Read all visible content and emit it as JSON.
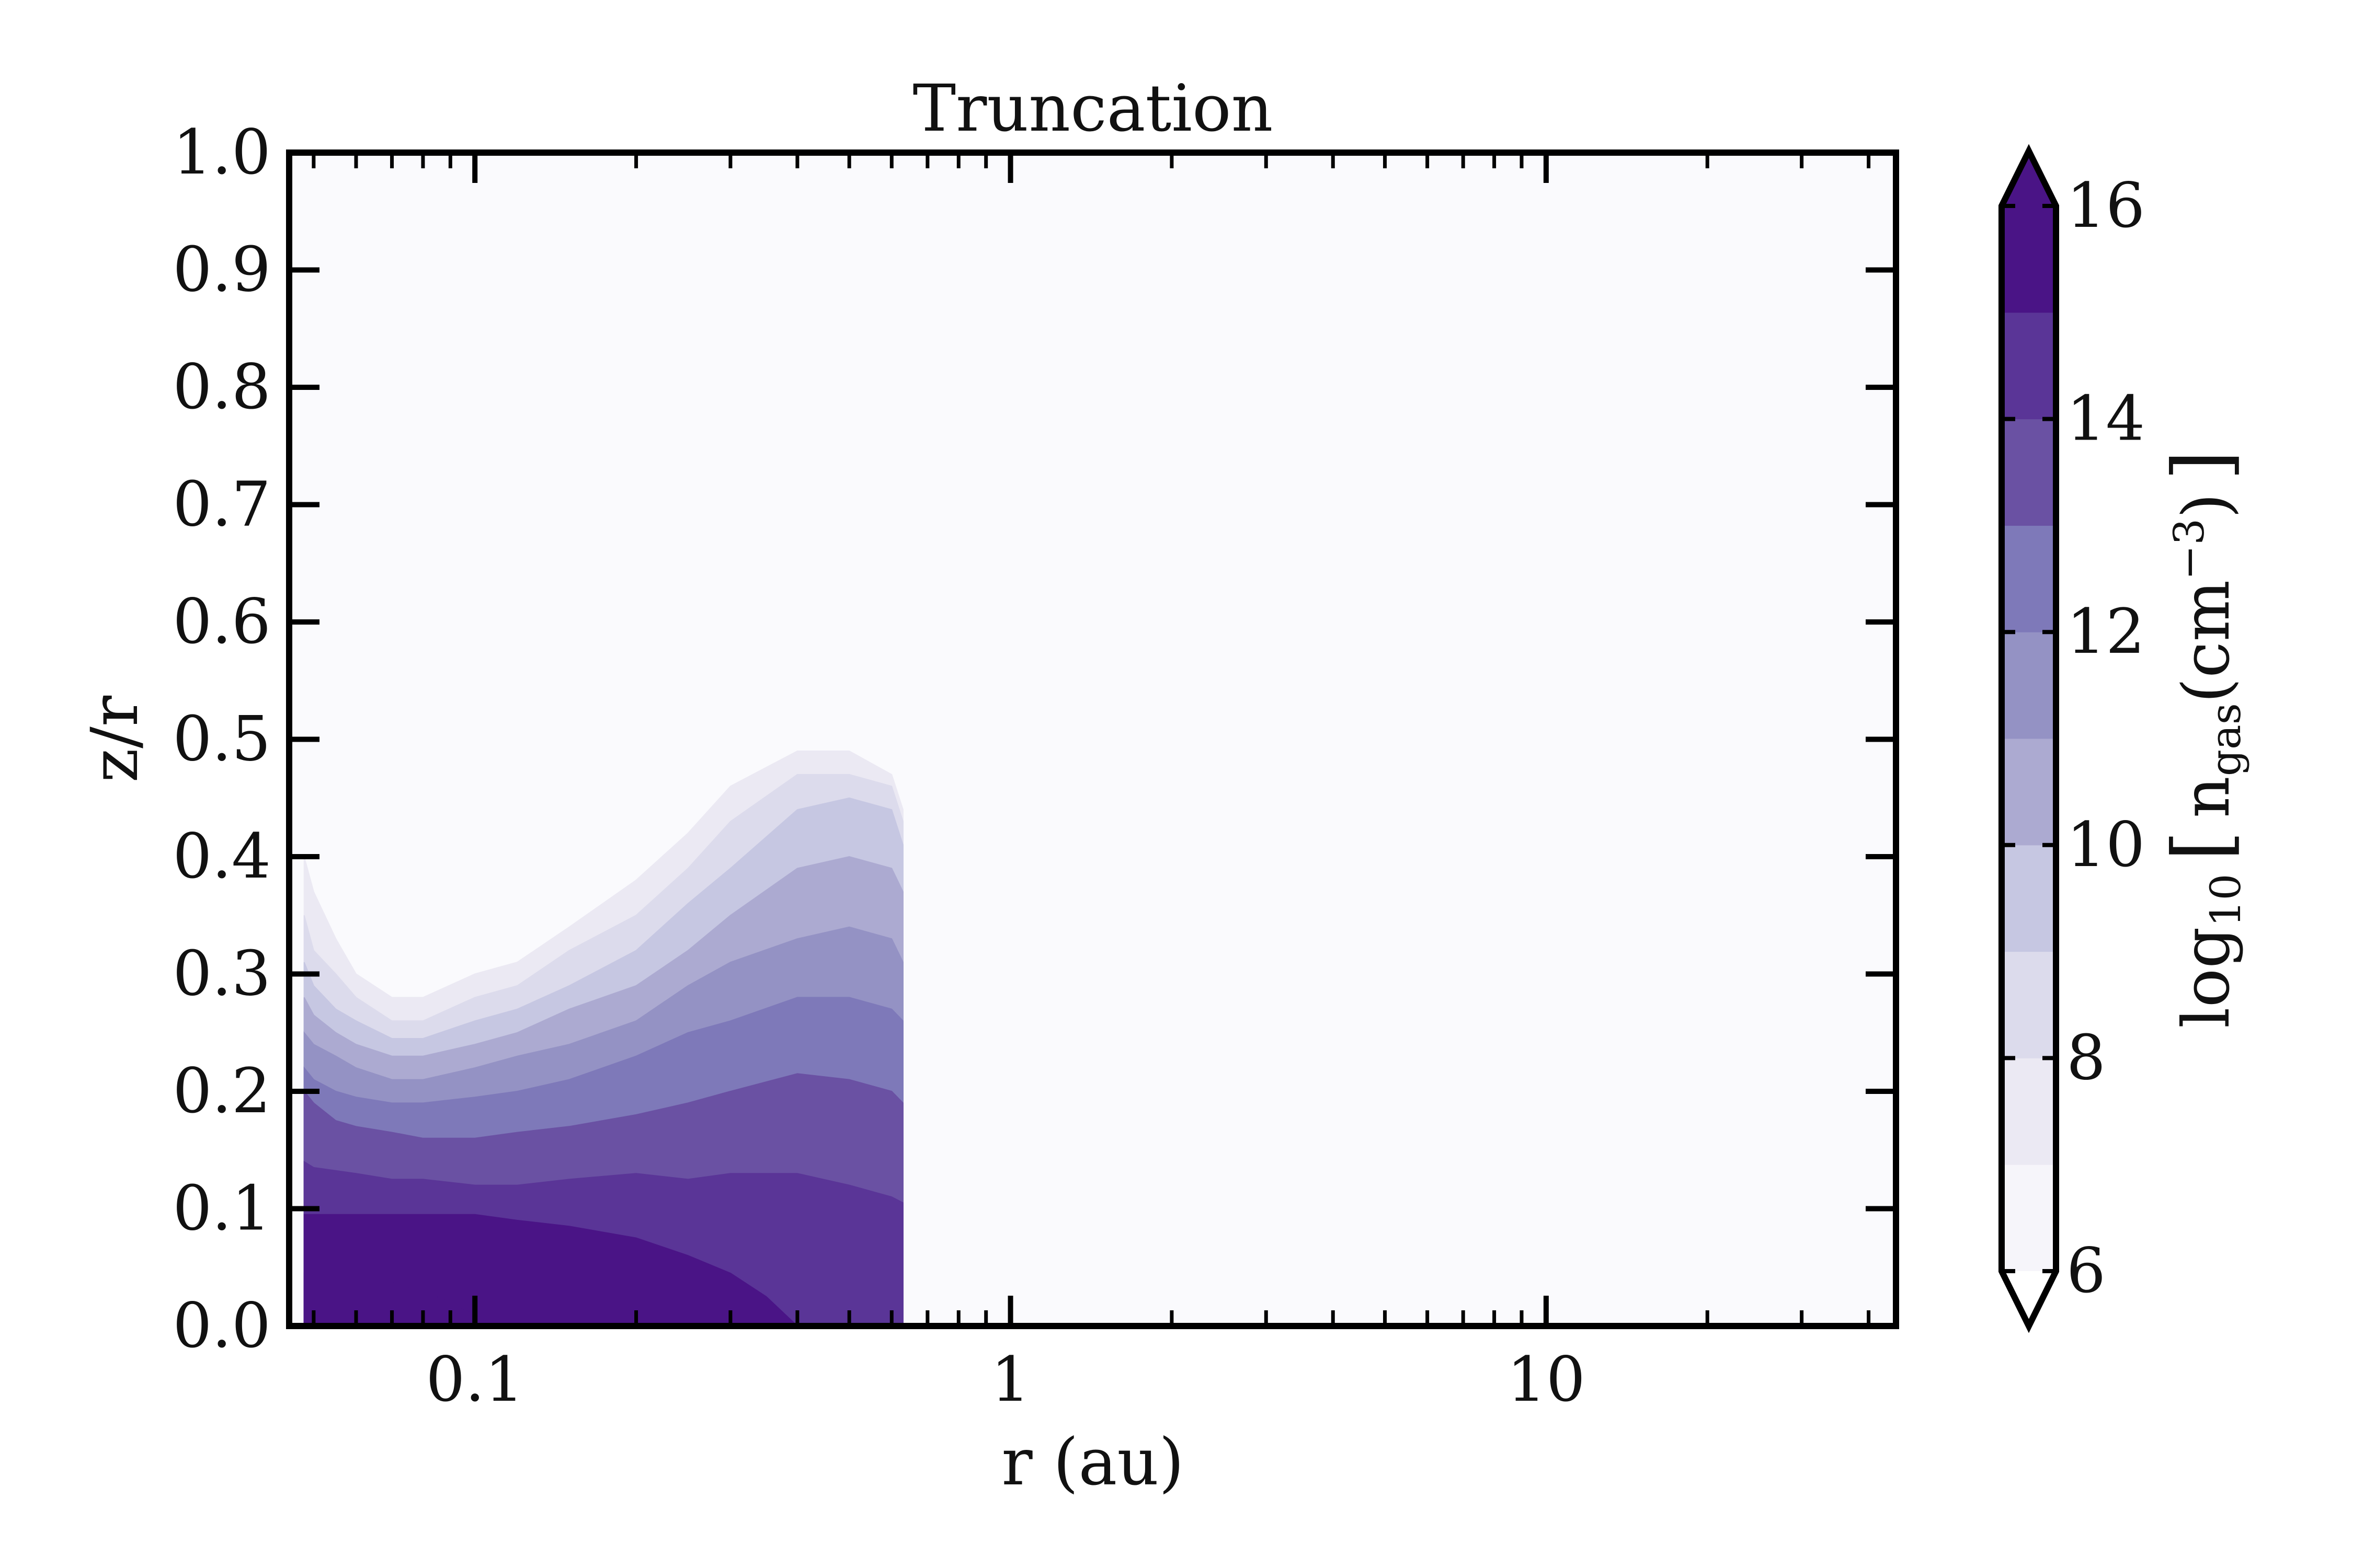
{
  "chart_data": {
    "type": "heatmap",
    "title": "Truncation",
    "xlabel": "r (au)",
    "ylabel": "z/r",
    "xscale": "log",
    "xlim": [
      0.045,
      45
    ],
    "ylim": [
      0.0,
      1.0
    ],
    "x_ticks": [
      {
        "value": 0.1,
        "label": "0.1"
      },
      {
        "value": 1,
        "label": "1"
      },
      {
        "value": 10,
        "label": "10"
      }
    ],
    "y_ticks": [
      {
        "value": 0.0,
        "label": "0.0"
      },
      {
        "value": 0.1,
        "label": "0.1"
      },
      {
        "value": 0.2,
        "label": "0.2"
      },
      {
        "value": 0.3,
        "label": "0.3"
      },
      {
        "value": 0.4,
        "label": "0.4"
      },
      {
        "value": 0.5,
        "label": "0.5"
      },
      {
        "value": 0.6,
        "label": "0.6"
      },
      {
        "value": 0.7,
        "label": "0.7"
      },
      {
        "value": 0.8,
        "label": "0.8"
      },
      {
        "value": 0.9,
        "label": "0.9"
      },
      {
        "value": 1.0,
        "label": "1.0"
      }
    ],
    "colorbar": {
      "label_parts": {
        "base": "log",
        "base_sub": "10",
        "open": "[",
        "quantity": "n",
        "quantity_sub": "gas",
        "unit_open": "(cm",
        "exponent": "−3",
        "unit_close": ")",
        "close": "]"
      },
      "range": [
        6,
        16
      ],
      "levels": [
        6,
        7,
        8,
        9,
        10,
        11,
        12,
        13,
        14,
        15,
        16
      ],
      "tick_values": [
        6,
        8,
        10,
        12,
        14,
        16
      ],
      "tick_labels": [
        "6",
        "8",
        "10",
        "12",
        "14",
        "16"
      ],
      "extend": "both",
      "colormap": "Purples",
      "colors": [
        "#f6f5fa",
        "#ebe9f3",
        "#dcdbec",
        "#c6c7e2",
        "#acaad1",
        "#9492c4",
        "#7e79b9",
        "#6a51a3",
        "#5a3597",
        "#4a1486"
      ]
    },
    "background_level_color": "#fafafd",
    "inner_edge_r": 0.048,
    "outer_edge_r": 0.63,
    "contours": [
      {
        "level": 7,
        "points": [
          [
            0.048,
            0.4
          ],
          [
            0.05,
            0.37
          ],
          [
            0.055,
            0.33
          ],
          [
            0.06,
            0.3
          ],
          [
            0.07,
            0.28
          ],
          [
            0.08,
            0.28
          ],
          [
            0.1,
            0.3
          ],
          [
            0.12,
            0.31
          ],
          [
            0.15,
            0.34
          ],
          [
            0.2,
            0.38
          ],
          [
            0.25,
            0.42
          ],
          [
            0.3,
            0.46
          ],
          [
            0.4,
            0.49
          ],
          [
            0.5,
            0.49
          ],
          [
            0.6,
            0.47
          ],
          [
            0.63,
            0.44
          ]
        ]
      },
      {
        "level": 8,
        "points": [
          [
            0.048,
            0.35
          ],
          [
            0.05,
            0.32
          ],
          [
            0.055,
            0.3
          ],
          [
            0.06,
            0.28
          ],
          [
            0.07,
            0.26
          ],
          [
            0.08,
            0.26
          ],
          [
            0.1,
            0.28
          ],
          [
            0.12,
            0.29
          ],
          [
            0.15,
            0.32
          ],
          [
            0.2,
            0.35
          ],
          [
            0.25,
            0.39
          ],
          [
            0.3,
            0.43
          ],
          [
            0.4,
            0.47
          ],
          [
            0.5,
            0.47
          ],
          [
            0.6,
            0.46
          ],
          [
            0.63,
            0.43
          ]
        ]
      },
      {
        "level": 9,
        "points": [
          [
            0.048,
            0.31
          ],
          [
            0.05,
            0.29
          ],
          [
            0.055,
            0.27
          ],
          [
            0.06,
            0.26
          ],
          [
            0.07,
            0.245
          ],
          [
            0.08,
            0.245
          ],
          [
            0.1,
            0.26
          ],
          [
            0.12,
            0.27
          ],
          [
            0.15,
            0.29
          ],
          [
            0.2,
            0.32
          ],
          [
            0.25,
            0.36
          ],
          [
            0.3,
            0.39
          ],
          [
            0.4,
            0.44
          ],
          [
            0.5,
            0.45
          ],
          [
            0.6,
            0.44
          ],
          [
            0.63,
            0.41
          ]
        ]
      },
      {
        "level": 10,
        "points": [
          [
            0.048,
            0.28
          ],
          [
            0.05,
            0.265
          ],
          [
            0.055,
            0.25
          ],
          [
            0.06,
            0.24
          ],
          [
            0.07,
            0.23
          ],
          [
            0.08,
            0.23
          ],
          [
            0.1,
            0.24
          ],
          [
            0.12,
            0.25
          ],
          [
            0.15,
            0.27
          ],
          [
            0.2,
            0.29
          ],
          [
            0.25,
            0.32
          ],
          [
            0.3,
            0.35
          ],
          [
            0.4,
            0.39
          ],
          [
            0.5,
            0.4
          ],
          [
            0.6,
            0.39
          ],
          [
            0.63,
            0.37
          ]
        ]
      },
      {
        "level": 11,
        "points": [
          [
            0.048,
            0.25
          ],
          [
            0.05,
            0.24
          ],
          [
            0.055,
            0.23
          ],
          [
            0.06,
            0.22
          ],
          [
            0.07,
            0.21
          ],
          [
            0.08,
            0.21
          ],
          [
            0.1,
            0.22
          ],
          [
            0.12,
            0.23
          ],
          [
            0.15,
            0.24
          ],
          [
            0.2,
            0.26
          ],
          [
            0.25,
            0.29
          ],
          [
            0.3,
            0.31
          ],
          [
            0.4,
            0.33
          ],
          [
            0.5,
            0.34
          ],
          [
            0.6,
            0.33
          ],
          [
            0.63,
            0.31
          ]
        ]
      },
      {
        "level": 12,
        "points": [
          [
            0.048,
            0.22
          ],
          [
            0.05,
            0.21
          ],
          [
            0.055,
            0.2
          ],
          [
            0.06,
            0.195
          ],
          [
            0.07,
            0.19
          ],
          [
            0.08,
            0.19
          ],
          [
            0.1,
            0.195
          ],
          [
            0.12,
            0.2
          ],
          [
            0.15,
            0.21
          ],
          [
            0.2,
            0.23
          ],
          [
            0.25,
            0.25
          ],
          [
            0.3,
            0.26
          ],
          [
            0.4,
            0.28
          ],
          [
            0.5,
            0.28
          ],
          [
            0.6,
            0.27
          ],
          [
            0.63,
            0.26
          ]
        ]
      },
      {
        "level": 13,
        "points": [
          [
            0.048,
            0.2
          ],
          [
            0.05,
            0.19
          ],
          [
            0.055,
            0.175
          ],
          [
            0.06,
            0.17
          ],
          [
            0.07,
            0.165
          ],
          [
            0.08,
            0.16
          ],
          [
            0.1,
            0.16
          ],
          [
            0.12,
            0.165
          ],
          [
            0.15,
            0.17
          ],
          [
            0.2,
            0.18
          ],
          [
            0.25,
            0.19
          ],
          [
            0.3,
            0.2
          ],
          [
            0.4,
            0.215
          ],
          [
            0.5,
            0.21
          ],
          [
            0.6,
            0.2
          ],
          [
            0.63,
            0.19
          ]
        ]
      },
      {
        "level": 14,
        "points": [
          [
            0.048,
            0.14
          ],
          [
            0.05,
            0.135
          ],
          [
            0.06,
            0.13
          ],
          [
            0.07,
            0.125
          ],
          [
            0.08,
            0.125
          ],
          [
            0.1,
            0.12
          ],
          [
            0.12,
            0.12
          ],
          [
            0.15,
            0.125
          ],
          [
            0.2,
            0.13
          ],
          [
            0.25,
            0.125
          ],
          [
            0.3,
            0.13
          ],
          [
            0.4,
            0.13
          ],
          [
            0.5,
            0.12
          ],
          [
            0.6,
            0.11
          ],
          [
            0.63,
            0.105
          ]
        ]
      },
      {
        "level": 15,
        "points": [
          [
            0.048,
            0.095
          ],
          [
            0.06,
            0.095
          ],
          [
            0.08,
            0.095
          ],
          [
            0.1,
            0.095
          ],
          [
            0.12,
            0.09
          ],
          [
            0.15,
            0.085
          ],
          [
            0.2,
            0.075
          ],
          [
            0.25,
            0.06
          ],
          [
            0.3,
            0.045
          ],
          [
            0.35,
            0.025
          ],
          [
            0.4,
            0.0
          ]
        ]
      },
      {
        "level": 16,
        "points": [
          [
            0.048,
            0.045
          ],
          [
            0.06,
            0.04
          ],
          [
            0.07,
            0.037
          ],
          [
            0.08,
            0.03
          ],
          [
            0.09,
            0.02
          ],
          [
            0.1,
            0.01
          ],
          [
            0.11,
            0.0
          ]
        ]
      }
    ]
  }
}
